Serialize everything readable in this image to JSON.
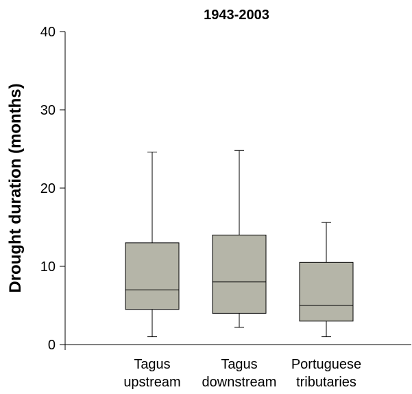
{
  "chart_data": {
    "type": "box",
    "title": "1943-2003",
    "y_label": "Drought duration (months)",
    "categories": [
      "Tagus upstream",
      "Tagus downstream",
      "Portuguese tributaries"
    ],
    "min": [
      1,
      2.2,
      1
    ],
    "q1": [
      4.5,
      4,
      3
    ],
    "median": [
      7,
      8,
      5
    ],
    "q3": [
      13,
      14,
      10.5
    ],
    "max": [
      24.6,
      24.8,
      15.6
    ],
    "color": "#b5b5a8",
    "ylim": [
      0,
      40
    ],
    "yticks": [
      0,
      10,
      20,
      30,
      40
    ]
  }
}
